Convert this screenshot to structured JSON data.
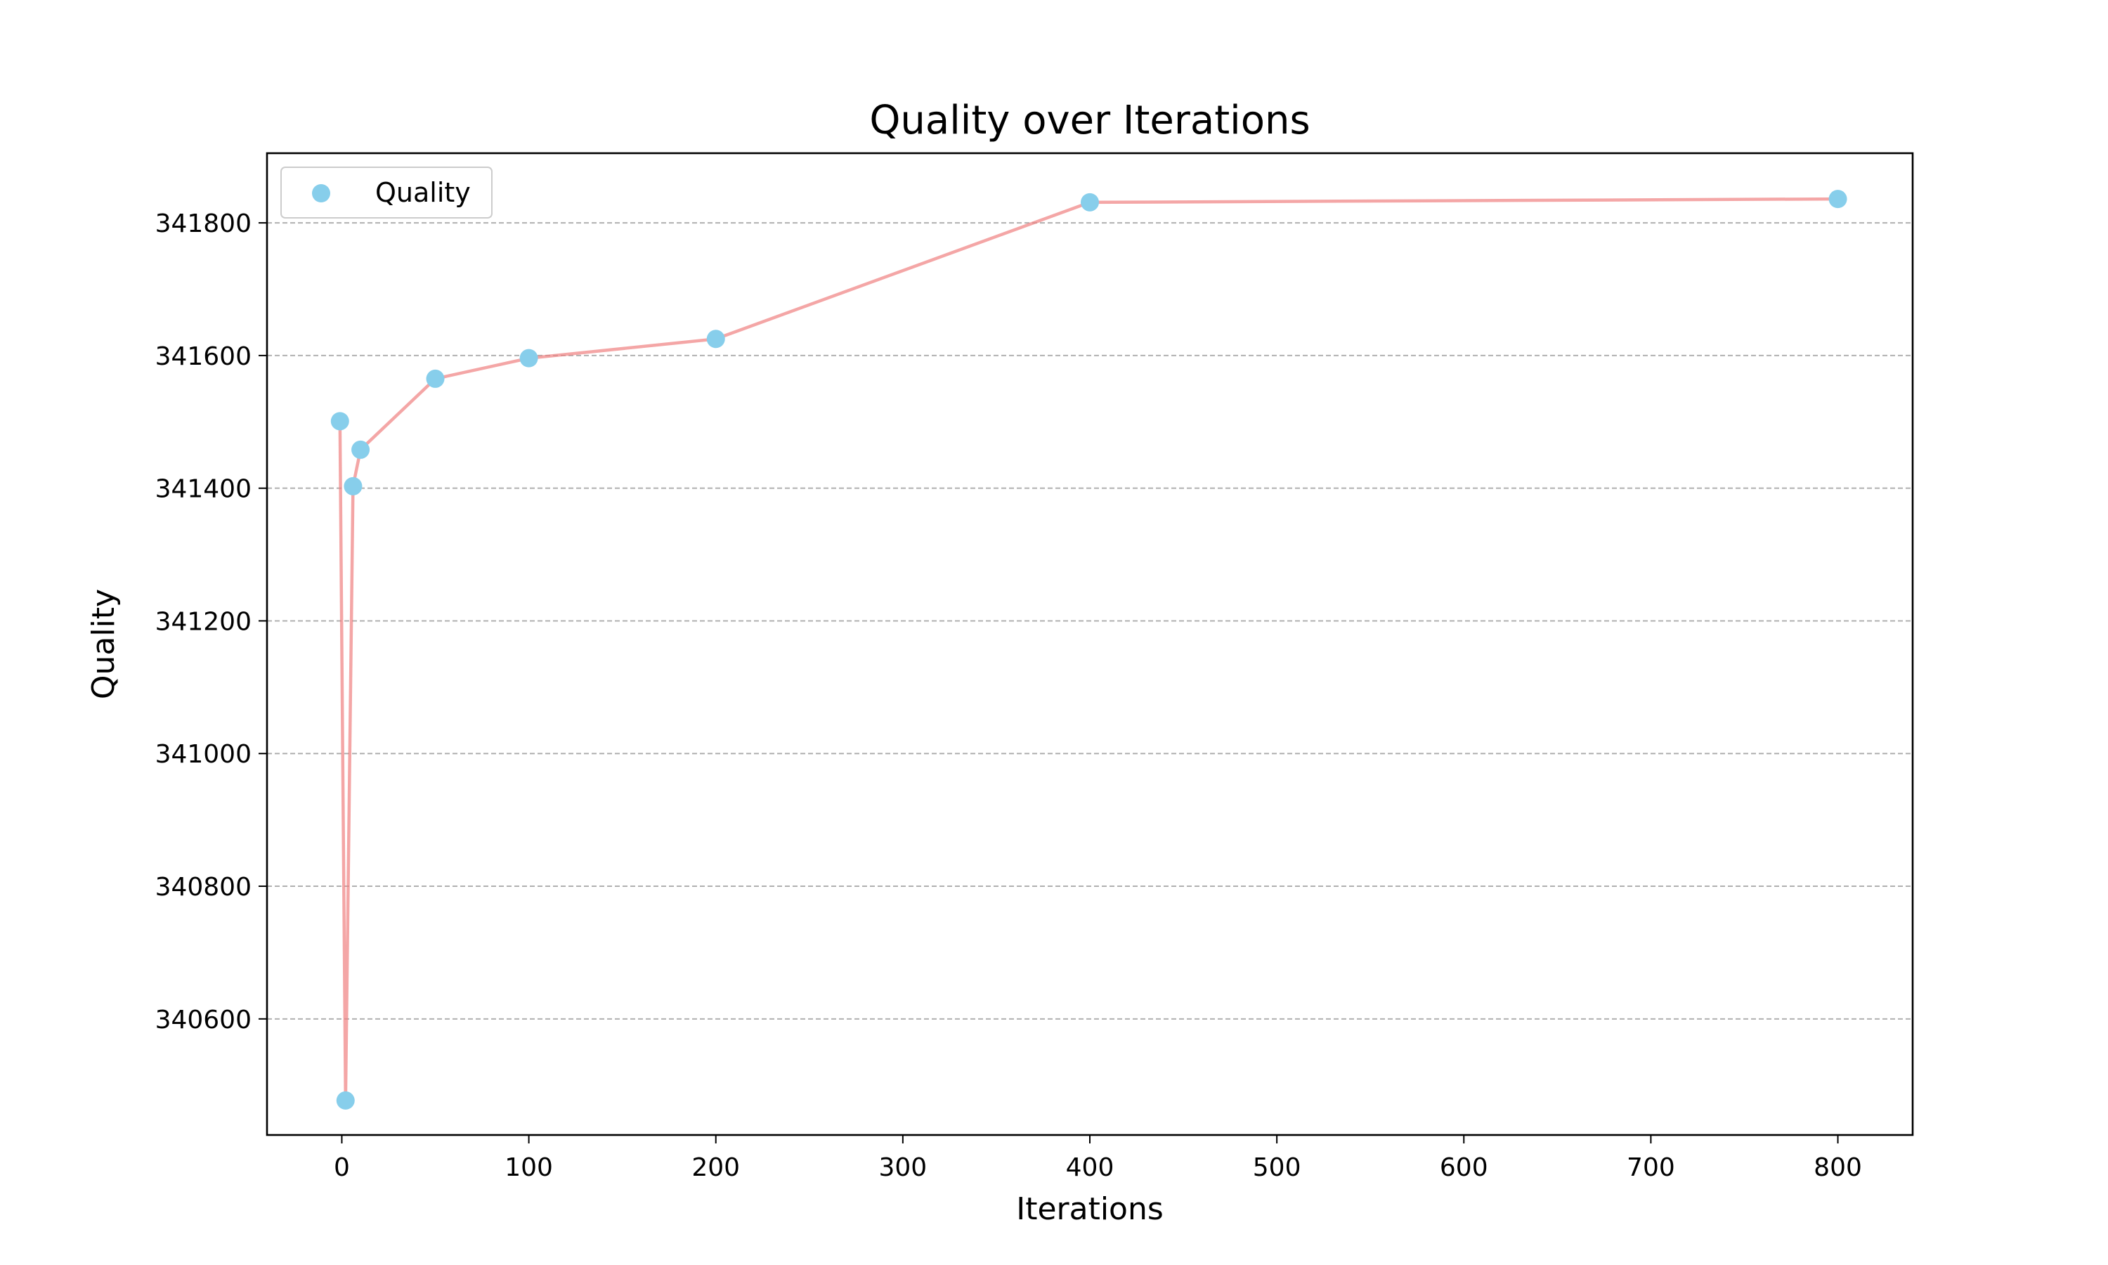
{
  "chart_data": {
    "type": "line",
    "title": "Quality over Iterations",
    "xlabel": "Iterations",
    "ylabel": "Quality",
    "xlim": [
      -40,
      840
    ],
    "ylim": [
      340425,
      341905
    ],
    "x_ticks": [
      0,
      100,
      200,
      300,
      400,
      500,
      600,
      700,
      800
    ],
    "y_ticks": [
      340600,
      340800,
      341000,
      341200,
      341400,
      341600,
      341800
    ],
    "grid": {
      "axis": "y",
      "style": "dashed",
      "color": "#b0b0b0"
    },
    "legend": {
      "position": "top-left",
      "entries": [
        "Quality"
      ]
    },
    "series": [
      {
        "name": "Quality",
        "marker_color": "#87CEEB",
        "line_color": "#F08080",
        "x": [
          -1,
          2,
          6,
          10,
          50,
          100,
          200,
          400,
          800
        ],
        "y": [
          341501,
          340477,
          341403,
          341458,
          341565,
          341596,
          341625,
          341831,
          341836
        ]
      }
    ]
  }
}
